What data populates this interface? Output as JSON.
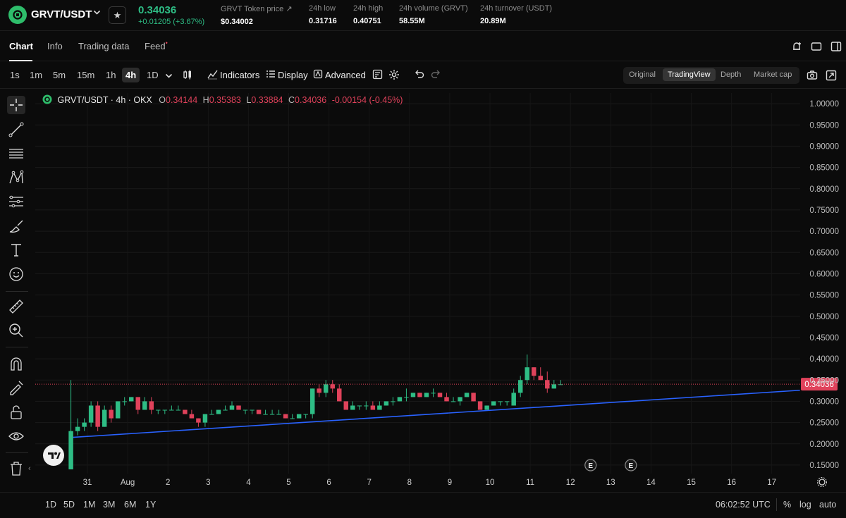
{
  "ticker": {
    "pair": "GRVT/USDT",
    "last_price": "0.34036",
    "change": "+0.01205 (+3.67%)",
    "stats": [
      {
        "label": "GRVT Token price",
        "value": "$0.34002",
        "external": true
      },
      {
        "label": "24h low",
        "value": "0.31716"
      },
      {
        "label": "24h high",
        "value": "0.40751"
      },
      {
        "label": "24h volume (GRVT)",
        "value": "58.55M"
      },
      {
        "label": "24h turnover (USDT)",
        "value": "20.89M"
      }
    ],
    "colors": {
      "up": "#2ebd85",
      "down": "#e0425b",
      "trendline": "#2962ff"
    }
  },
  "tabs": [
    {
      "label": "Chart",
      "active": true
    },
    {
      "label": "Info"
    },
    {
      "label": "Trading data"
    },
    {
      "label": "Feed",
      "badge": "•"
    }
  ],
  "toolbar": {
    "timeframes": [
      "1s",
      "1m",
      "5m",
      "15m",
      "1h",
      "4h",
      "1D"
    ],
    "active_timeframe": "4h",
    "indicators_label": "Indicators",
    "display_label": "Display",
    "advanced_label": "Advanced",
    "views": [
      "Original",
      "TradingView",
      "Depth",
      "Market cap"
    ],
    "active_view": "TradingView"
  },
  "legend": {
    "symbol": "GRVT/USDT · 4h · OKX",
    "o_label": "O",
    "o": "0.34144",
    "h_label": "H",
    "h": "0.35383",
    "l_label": "L",
    "l": "0.33884",
    "c_label": "C",
    "c": "0.34036",
    "change": "-0.00154 (-0.45%)"
  },
  "chart_data": {
    "type": "candlestick",
    "y_range": [
      0.13,
      1.025
    ],
    "price_ticks": [
      "1.00000",
      "0.95000",
      "0.90000",
      "0.85000",
      "0.80000",
      "0.75000",
      "0.70000",
      "0.65000",
      "0.60000",
      "0.55000",
      "0.50000",
      "0.45000",
      "0.40000",
      "0.35000",
      "0.30000",
      "0.25000",
      "0.20000",
      "0.15000"
    ],
    "x_ticks": [
      {
        "label": "31",
        "day": 31
      },
      {
        "label": "Aug",
        "day": 32
      },
      {
        "label": "2",
        "day": 33
      },
      {
        "label": "3",
        "day": 34
      },
      {
        "label": "4",
        "day": 35
      },
      {
        "label": "5",
        "day": 36
      },
      {
        "label": "6",
        "day": 37
      },
      {
        "label": "7",
        "day": 38
      },
      {
        "label": "8",
        "day": 39
      },
      {
        "label": "9",
        "day": 40
      },
      {
        "label": "10",
        "day": 41
      },
      {
        "label": "11",
        "day": 42
      },
      {
        "label": "12",
        "day": 43
      },
      {
        "label": "13",
        "day": 44
      },
      {
        "label": "14",
        "day": 45
      },
      {
        "label": "15",
        "day": 46
      },
      {
        "label": "16",
        "day": 47
      },
      {
        "label": "17",
        "day": 48
      }
    ],
    "current_price": "0.34036",
    "candles": [
      [
        0.14,
        0.35,
        0.14,
        0.23
      ],
      [
        0.23,
        0.26,
        0.22,
        0.24
      ],
      [
        0.24,
        0.26,
        0.23,
        0.25
      ],
      [
        0.25,
        0.3,
        0.24,
        0.29
      ],
      [
        0.29,
        0.3,
        0.23,
        0.24
      ],
      [
        0.24,
        0.29,
        0.24,
        0.28
      ],
      [
        0.28,
        0.29,
        0.25,
        0.26
      ],
      [
        0.26,
        0.3,
        0.26,
        0.3
      ],
      [
        0.3,
        0.31,
        0.29,
        0.3
      ],
      [
        0.3,
        0.31,
        0.3,
        0.31
      ],
      [
        0.31,
        0.31,
        0.27,
        0.28
      ],
      [
        0.28,
        0.31,
        0.28,
        0.3
      ],
      [
        0.3,
        0.31,
        0.27,
        0.28
      ],
      [
        0.28,
        0.28,
        0.27,
        0.28
      ],
      [
        0.28,
        0.28,
        0.27,
        0.28
      ],
      [
        0.28,
        0.29,
        0.28,
        0.28
      ],
      [
        0.28,
        0.29,
        0.28,
        0.28
      ],
      [
        0.28,
        0.28,
        0.27,
        0.27
      ],
      [
        0.27,
        0.28,
        0.26,
        0.26
      ],
      [
        0.26,
        0.26,
        0.24,
        0.25
      ],
      [
        0.25,
        0.27,
        0.24,
        0.27
      ],
      [
        0.27,
        0.28,
        0.27,
        0.27
      ],
      [
        0.27,
        0.28,
        0.27,
        0.28
      ],
      [
        0.28,
        0.29,
        0.28,
        0.28
      ],
      [
        0.28,
        0.3,
        0.28,
        0.29
      ],
      [
        0.29,
        0.29,
        0.28,
        0.28
      ],
      [
        0.28,
        0.28,
        0.27,
        0.28
      ],
      [
        0.28,
        0.28,
        0.27,
        0.28
      ],
      [
        0.28,
        0.28,
        0.27,
        0.27
      ],
      [
        0.27,
        0.28,
        0.27,
        0.27
      ],
      [
        0.27,
        0.28,
        0.27,
        0.27
      ],
      [
        0.27,
        0.28,
        0.27,
        0.27
      ],
      [
        0.27,
        0.27,
        0.26,
        0.26
      ],
      [
        0.26,
        0.27,
        0.26,
        0.26
      ],
      [
        0.26,
        0.27,
        0.26,
        0.27
      ],
      [
        0.27,
        0.27,
        0.26,
        0.27
      ],
      [
        0.27,
        0.33,
        0.26,
        0.33
      ],
      [
        0.33,
        0.34,
        0.31,
        0.32
      ],
      [
        0.32,
        0.35,
        0.31,
        0.34
      ],
      [
        0.34,
        0.35,
        0.32,
        0.33
      ],
      [
        0.33,
        0.34,
        0.3,
        0.3
      ],
      [
        0.3,
        0.3,
        0.28,
        0.28
      ],
      [
        0.28,
        0.3,
        0.28,
        0.29
      ],
      [
        0.29,
        0.29,
        0.28,
        0.29
      ],
      [
        0.29,
        0.3,
        0.28,
        0.29
      ],
      [
        0.29,
        0.3,
        0.28,
        0.28
      ],
      [
        0.28,
        0.3,
        0.28,
        0.29
      ],
      [
        0.29,
        0.3,
        0.29,
        0.3
      ],
      [
        0.3,
        0.31,
        0.29,
        0.3
      ],
      [
        0.3,
        0.31,
        0.3,
        0.31
      ],
      [
        0.31,
        0.33,
        0.3,
        0.31
      ],
      [
        0.31,
        0.32,
        0.31,
        0.32
      ],
      [
        0.32,
        0.32,
        0.31,
        0.31
      ],
      [
        0.31,
        0.32,
        0.31,
        0.32
      ],
      [
        0.32,
        0.33,
        0.31,
        0.32
      ],
      [
        0.32,
        0.32,
        0.31,
        0.31
      ],
      [
        0.31,
        0.32,
        0.3,
        0.3
      ],
      [
        0.3,
        0.31,
        0.3,
        0.3
      ],
      [
        0.3,
        0.31,
        0.29,
        0.31
      ],
      [
        0.31,
        0.32,
        0.31,
        0.32
      ],
      [
        0.32,
        0.32,
        0.3,
        0.3
      ],
      [
        0.3,
        0.3,
        0.28,
        0.28
      ],
      [
        0.28,
        0.29,
        0.28,
        0.29
      ],
      [
        0.29,
        0.3,
        0.29,
        0.3
      ],
      [
        0.3,
        0.3,
        0.29,
        0.3
      ],
      [
        0.3,
        0.3,
        0.29,
        0.3
      ],
      [
        0.29,
        0.33,
        0.29,
        0.32
      ],
      [
        0.32,
        0.36,
        0.31,
        0.35
      ],
      [
        0.35,
        0.41,
        0.34,
        0.38
      ],
      [
        0.38,
        0.38,
        0.35,
        0.36
      ],
      [
        0.36,
        0.38,
        0.35,
        0.35
      ],
      [
        0.35,
        0.37,
        0.32,
        0.33
      ],
      [
        0.33,
        0.35,
        0.33,
        0.34
      ],
      [
        0.34,
        0.35,
        0.34,
        0.34
      ]
    ],
    "trendline": [
      [
        30.6,
        0.215
      ],
      [
        48.7,
        0.326
      ]
    ],
    "event_markers": [
      {
        "label": "E",
        "day": 43.5
      },
      {
        "label": "E",
        "day": 44.5
      }
    ]
  },
  "bottom": {
    "ranges": [
      "1D",
      "5D",
      "1M",
      "3M",
      "6M",
      "1Y"
    ],
    "clock": "06:02:52 UTC",
    "percent_label": "%",
    "log_label": "log",
    "auto_label": "auto"
  }
}
